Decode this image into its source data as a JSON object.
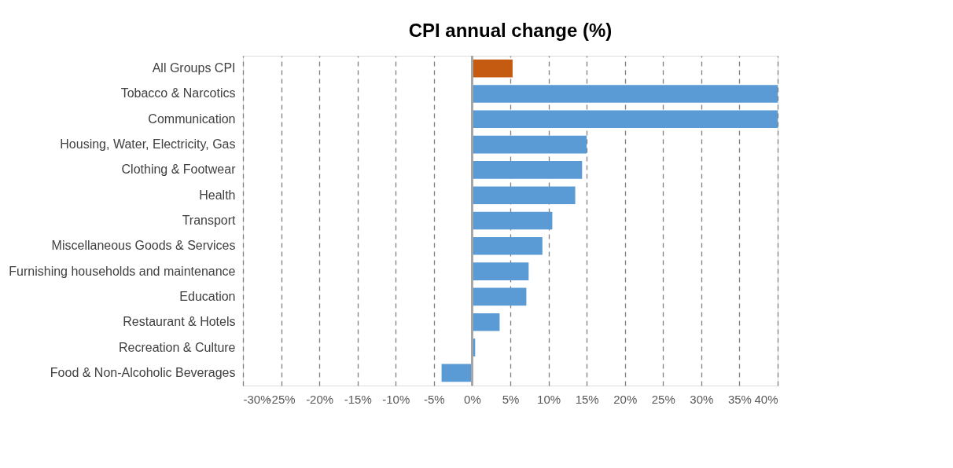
{
  "chart_data": {
    "type": "bar",
    "orientation": "horizontal",
    "title": "CPI annual change (%)",
    "categories": [
      "All Groups CPI",
      "Tobacco & Narcotics",
      "Communication",
      "Housing, Water, Electricity, Gas",
      "Clothing & Footwear",
      "Health",
      "Transport",
      "Miscellaneous Goods & Services",
      "Furnishing households and maintenance",
      "Education",
      "Restaurant & Hotels",
      "Recreation & Culture",
      "Food & Non-Alcoholic Beverages"
    ],
    "values": [
      5.3,
      40,
      40,
      15.0,
      14.4,
      13.5,
      10.5,
      9.2,
      7.4,
      7.1,
      3.6,
      0.4,
      -4.0
    ],
    "colors": [
      "#c55a11",
      "#5b9bd5",
      "#5b9bd5",
      "#5b9bd5",
      "#5b9bd5",
      "#5b9bd5",
      "#5b9bd5",
      "#5b9bd5",
      "#5b9bd5",
      "#5b9bd5",
      "#5b9bd5",
      "#5b9bd5",
      "#5b9bd5"
    ],
    "xlim": [
      -30,
      40
    ],
    "xticks": [
      {
        "value": -30,
        "label": "-30%"
      },
      {
        "value": -25,
        "label": "-25%"
      },
      {
        "value": -20,
        "label": "-20%"
      },
      {
        "value": -15,
        "label": "-15%"
      },
      {
        "value": -10,
        "label": "-10%"
      },
      {
        "value": -5,
        "label": "-5%"
      },
      {
        "value": 0,
        "label": "0%"
      },
      {
        "value": 5,
        "label": "5%"
      },
      {
        "value": 10,
        "label": "10%"
      },
      {
        "value": 15,
        "label": "15%"
      },
      {
        "value": 20,
        "label": "20%"
      },
      {
        "value": 25,
        "label": "25%"
      },
      {
        "value": 30,
        "label": "30%"
      },
      {
        "value": 35,
        "label": "35%"
      },
      {
        "value": 40,
        "label": "40%"
      }
    ],
    "grid": "x"
  }
}
